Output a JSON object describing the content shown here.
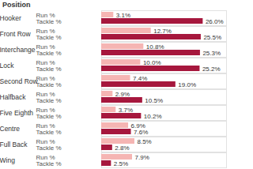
{
  "chart_data": {
    "type": "bar",
    "orientation": "horizontal",
    "y_label": "Position",
    "categories": [
      "Hooker",
      "Front Row",
      "Interchange",
      "Lock",
      "Second Row",
      "Halfback",
      "Five Eighth",
      "Centre",
      "Full Back",
      "Wing"
    ],
    "series": [
      {
        "name": "Run %",
        "color": "#f5b5b3",
        "values": [
          3.1,
          12.7,
          10.8,
          10.0,
          7.4,
          2.9,
          3.7,
          6.9,
          8.5,
          7.9
        ],
        "value_labels": [
          "3.1%",
          "12.7%",
          "10.8%",
          "10.0%",
          "7.4%",
          "2.9%",
          "3.7%",
          "6.9%",
          "8.5%",
          "7.9%"
        ]
      },
      {
        "name": "Tackle %",
        "color": "#a6173d",
        "values": [
          26.0,
          25.5,
          25.3,
          25.2,
          19.0,
          10.5,
          10.2,
          7.6,
          2.8,
          2.5
        ],
        "value_labels": [
          "26.0%",
          "25.5%",
          "25.3%",
          "25.2%",
          "19.0%",
          "10.5%",
          "10.2%",
          "7.6%",
          "2.8%",
          "2.5%"
        ]
      }
    ],
    "xlim": [
      0,
      32
    ],
    "data_labels": true,
    "tick_labels": "y",
    "grid": false
  }
}
